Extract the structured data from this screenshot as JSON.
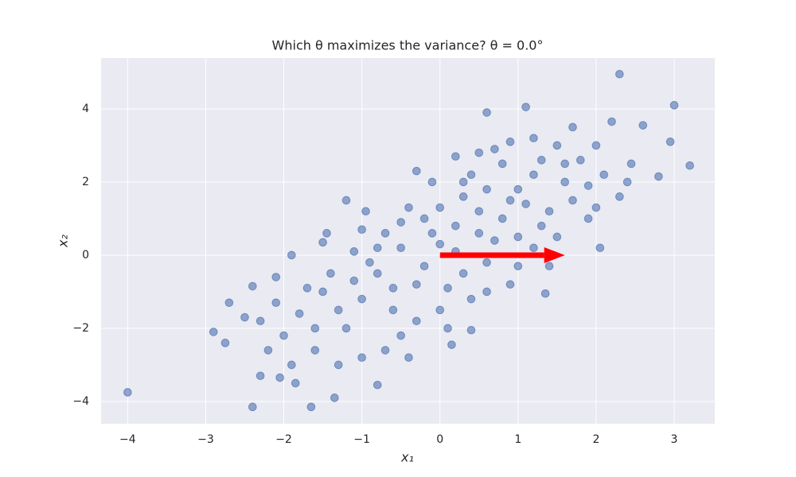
{
  "chart_data": {
    "type": "scatter",
    "title": "Which θ maximizes the variance? θ = 0.0°",
    "xlabel": "x₁",
    "ylabel": "x₂",
    "xlim": [
      -4.34,
      3.52
    ],
    "ylim": [
      -4.61,
      5.39
    ],
    "xticks": [
      {
        "value": -4,
        "label": "−4"
      },
      {
        "value": -3,
        "label": "−3"
      },
      {
        "value": -2,
        "label": "−2"
      },
      {
        "value": -1,
        "label": "−1"
      },
      0,
      1,
      2,
      3
    ],
    "yticks": [
      {
        "value": -4,
        "label": "−4"
      },
      {
        "value": -2,
        "label": "−2"
      },
      0,
      2,
      4
    ],
    "grid": true,
    "color": "#4c72b0",
    "x": [
      -4.0,
      2.3,
      3.0,
      3.2,
      2.95,
      -2.4,
      -1.65,
      -2.9,
      -2.75,
      -2.7,
      -2.4,
      1.1,
      0.6,
      2.2,
      2.6,
      2.8,
      2.45,
      2.05,
      1.35,
      0.4,
      0.15,
      -1.35,
      -0.8,
      -2.05,
      -2.3,
      -1.85,
      -1.2,
      -1.5,
      -1.45,
      -0.95,
      1.9,
      1.4,
      -1.0,
      -0.8,
      -0.5,
      -0.3,
      0.0,
      0.2,
      0.5,
      0.7,
      1.0,
      1.2,
      0.8,
      0.3,
      -0.2,
      -0.6,
      -1.2,
      -1.5,
      -1.8,
      -2.0,
      -1.0,
      -0.5,
      0.0,
      0.3,
      0.6,
      1.0,
      1.4,
      1.6,
      1.8,
      2.0,
      1.5,
      0.9,
      0.4,
      -0.1,
      -0.4,
      -0.7,
      -1.1,
      -1.4,
      -1.7,
      -2.1,
      -2.3,
      -0.9,
      0.1,
      0.5,
      0.8,
      1.1,
      1.3,
      1.7,
      2.1,
      2.3,
      1.9,
      0.6,
      0.2,
      -0.2,
      -0.6,
      -1.3,
      -0.3,
      0.4,
      0.9,
      1.2,
      0.7,
      0.0,
      -0.5,
      -0.8,
      -1.6,
      -1.3,
      -0.7,
      -2.2,
      0.2,
      1.3,
      1.6,
      2.0,
      1.0,
      0.6,
      -0.1,
      -1.0,
      -1.9,
      -2.1,
      -2.5,
      -1.1,
      0.3,
      0.9,
      1.5,
      0.1,
      -0.4,
      -1.6,
      1.2,
      0.5,
      -0.3,
      1.7,
      2.4,
      -1.9
    ],
    "values": [
      -3.75,
      4.95,
      4.1,
      2.45,
      3.1,
      -4.15,
      -4.15,
      -2.1,
      -2.4,
      -1.3,
      -0.85,
      4.05,
      3.9,
      3.65,
      3.55,
      2.15,
      2.5,
      0.2,
      -1.05,
      -2.05,
      -2.45,
      -3.9,
      -3.55,
      -3.35,
      -3.3,
      -3.5,
      1.5,
      0.35,
      0.6,
      1.2,
      1.0,
      -0.3,
      -1.2,
      -0.5,
      0.2,
      -0.8,
      0.3,
      0.8,
      1.2,
      0.4,
      1.8,
      2.2,
      2.5,
      1.6,
      1.0,
      -1.5,
      -2.0,
      -1.0,
      -1.6,
      -2.2,
      -2.8,
      -2.2,
      -1.5,
      -0.5,
      -0.2,
      0.5,
      1.2,
      2.0,
      2.6,
      3.0,
      3.0,
      3.1,
      2.2,
      2.0,
      1.3,
      0.6,
      0.1,
      -0.5,
      -0.9,
      -1.3,
      -1.8,
      -0.2,
      -0.9,
      0.6,
      1.0,
      1.4,
      0.8,
      1.5,
      2.2,
      1.6,
      1.9,
      1.8,
      0.1,
      -0.3,
      -0.9,
      -1.5,
      -1.8,
      -1.2,
      -0.8,
      0.2,
      2.9,
      1.3,
      0.9,
      0.2,
      -2.6,
      -3.0,
      -2.6,
      -2.6,
      2.7,
      2.6,
      2.5,
      1.3,
      -0.3,
      -1.0,
      0.6,
      0.7,
      0.0,
      -0.6,
      -1.7,
      -0.7,
      2.0,
      1.5,
      0.5,
      -2.0,
      -2.8,
      -2.0,
      3.2,
      2.8,
      2.3,
      3.5,
      2.0,
      -3.0
    ],
    "arrow": {
      "x": 0,
      "y": 0,
      "dx": 1.6,
      "dy": 0,
      "color": "#ff0000"
    }
  }
}
